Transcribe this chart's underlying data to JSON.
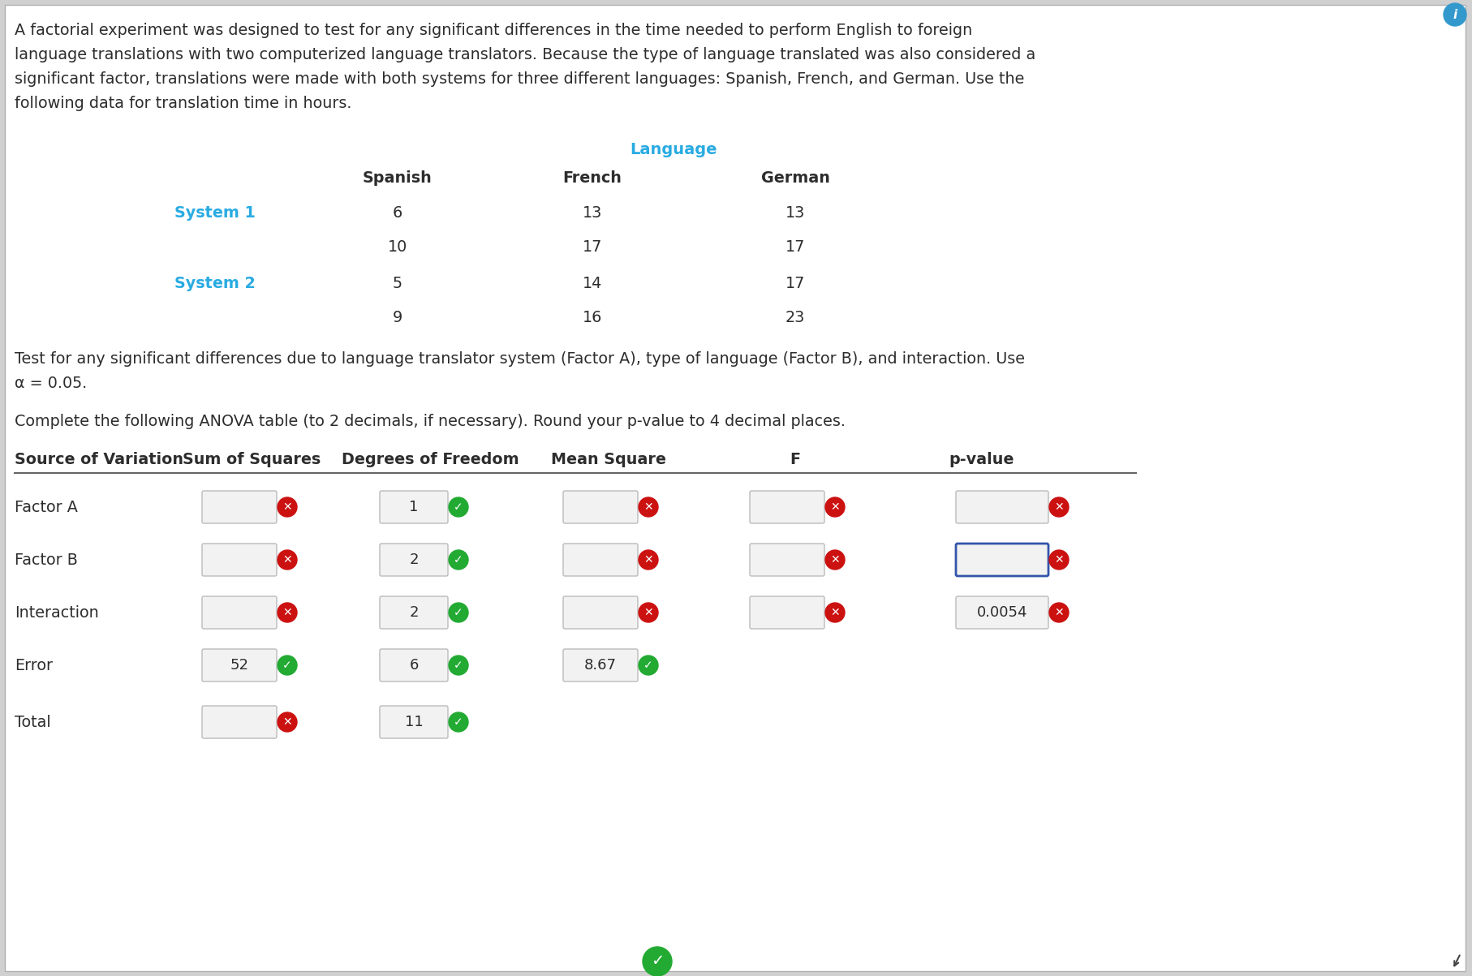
{
  "background_color": "#d0d0d0",
  "content_bg": "#ffffff",
  "intro_lines": [
    "A factorial experiment was designed to test for any significant differences in the time needed to perform English to foreign",
    "language translations with two computerized language translators. Because the type of language translated was also considered a",
    "significant factor, translations were made with both systems for three different languages: Spanish, French, and German. Use the",
    "following data for translation time in hours."
  ],
  "language_header": "Language",
  "col_headers": [
    "Spanish",
    "French",
    "German"
  ],
  "system1_label": "System 1",
  "system2_label": "System 2",
  "data_rows": [
    [
      "System 1",
      "6",
      "13",
      "13"
    ],
    [
      "",
      "10",
      "17",
      "17"
    ],
    [
      "System 2",
      "5",
      "14",
      "17"
    ],
    [
      "",
      "9",
      "16",
      "23"
    ]
  ],
  "test_line1": "Test for any significant differences due to language translator system (Factor A), type of language (Factor B), and interaction. Use",
  "test_line2": "α = 0.05.",
  "complete_text": "Complete the following ANOVA table (to 2 decimals, if necessary). Round your p-value to 4 decimal places.",
  "anova_header_labels": [
    "Source of Variation",
    "Sum of Squares",
    "Degrees of Freedom",
    "Mean Square",
    "F",
    "p-value"
  ],
  "anova_rows": [
    {
      "label": "Factor A",
      "ss": "",
      "df": "1",
      "ms": "",
      "f": "",
      "pval": "",
      "ss_wrong": true,
      "df_ok": true,
      "ms_wrong": true,
      "f_wrong": true,
      "pval_wrong": true,
      "pval_hl": false
    },
    {
      "label": "Factor B",
      "ss": "",
      "df": "2",
      "ms": "",
      "f": "",
      "pval": "",
      "ss_wrong": true,
      "df_ok": true,
      "ms_wrong": true,
      "f_wrong": true,
      "pval_wrong": true,
      "pval_hl": true
    },
    {
      "label": "Interaction",
      "ss": "",
      "df": "2",
      "ms": "",
      "f": "",
      "pval": "0.0054",
      "ss_wrong": true,
      "df_ok": true,
      "ms_wrong": true,
      "f_wrong": true,
      "pval_wrong": true,
      "pval_hl": false
    },
    {
      "label": "Error",
      "ss": "52",
      "df": "6",
      "ms": "8.67",
      "f": "",
      "pval": "",
      "ss_ok": true,
      "df_ok": true,
      "ms_ok": true,
      "f_none": true,
      "pval_none": true,
      "pval_hl": false
    },
    {
      "label": "Total",
      "ss": "",
      "df": "11",
      "ms": "",
      "f": "",
      "pval": "",
      "ss_wrong": true,
      "df_ok": true,
      "ms_none": true,
      "f_none": true,
      "pval_none": true,
      "pval_hl": false
    }
  ],
  "header_color": "#29abe2",
  "text_dark": "#2d2d2d",
  "box_bg": "#f2f2f2",
  "box_edge": "#bbbbbb",
  "box_hl_edge": "#3355aa",
  "red_circle": "#cc1111",
  "green_circle": "#22aa33"
}
